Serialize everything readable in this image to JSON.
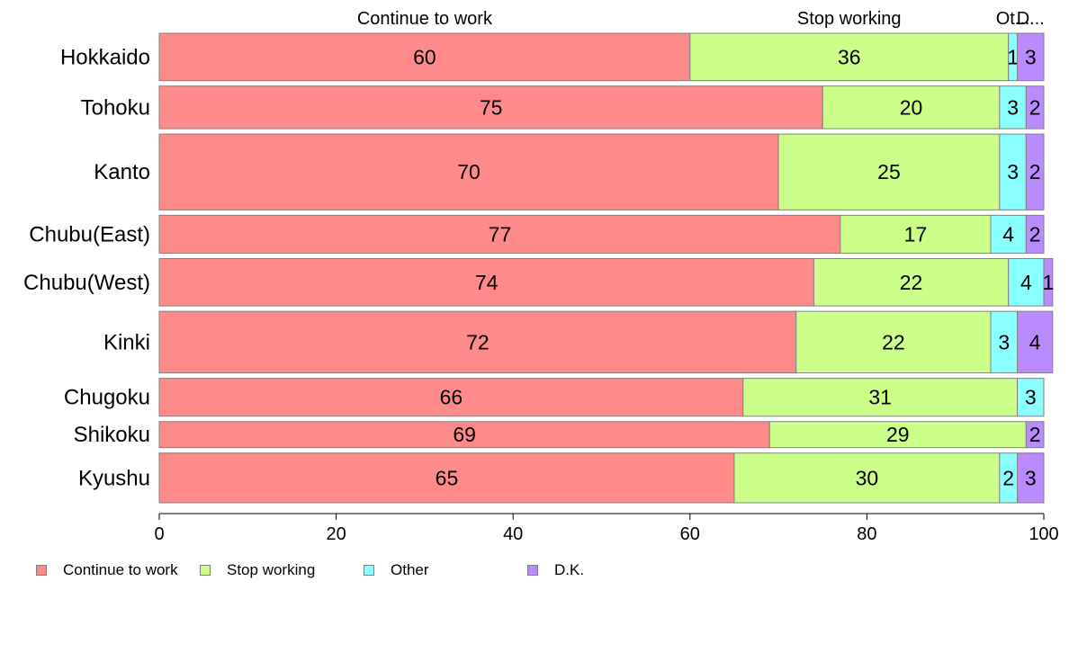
{
  "chart_data": {
    "type": "bar",
    "orientation": "horizontal",
    "stacked": true,
    "categories": [
      "Hokkaido",
      "Tohoku",
      "Kanto",
      "Chubu(East)",
      "Chubu(West)",
      "Kinki",
      "Chugoku",
      "Shikoku",
      "Kyushu"
    ],
    "series": [
      {
        "name": "Continue to work",
        "values": [
          60,
          75,
          70,
          77,
          74,
          72,
          66,
          69,
          65
        ],
        "color": "#ff8a8a",
        "column_label": "Continue to work"
      },
      {
        "name": "Stop working",
        "values": [
          36,
          20,
          25,
          17,
          22,
          22,
          31,
          29,
          30
        ],
        "color": "#ccff8a",
        "column_label": "Stop working"
      },
      {
        "name": "Other",
        "values": [
          1,
          3,
          3,
          4,
          4,
          3,
          3,
          0,
          2
        ],
        "color": "#8affff",
        "column_label": "Ot..."
      },
      {
        "name": "D.K.",
        "values": [
          3,
          2,
          2,
          2,
          1,
          4,
          0,
          2,
          3
        ],
        "color": "#bb8aff",
        "column_label": "D..."
      }
    ],
    "bar_weights": [
      1.0,
      0.9,
      1.6,
      0.8,
      1.0,
      1.3,
      0.8,
      0.55,
      1.05
    ],
    "xlim": [
      0,
      100
    ],
    "xticks": [
      "0",
      "20",
      "40",
      "60",
      "80",
      "100"
    ],
    "xlabel": "",
    "ylabel": "",
    "title": "",
    "grid": false,
    "legend_position": "bottom-left"
  }
}
